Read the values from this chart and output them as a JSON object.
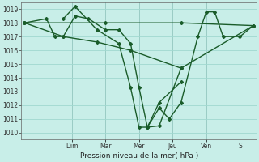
{
  "xlabel": "Pression niveau de la mer( hPa )",
  "background_color": "#c8eee8",
  "grid_color": "#a0d8d0",
  "line_color": "#1a5c2a",
  "ylim": [
    1009.5,
    1019.5
  ],
  "yticks": [
    1010,
    1011,
    1012,
    1013,
    1014,
    1015,
    1016,
    1017,
    1018,
    1019
  ],
  "day_labels": [
    "Dim",
    "Mar",
    "Mer",
    "Jeu",
    "Ven",
    "S"
  ],
  "day_x": [
    3,
    5,
    7,
    9,
    11,
    13
  ],
  "vline_x": [
    3,
    5,
    7,
    9,
    11,
    13
  ],
  "xlim": [
    0,
    14
  ],
  "series": [
    {
      "x": [
        0.2,
        1.5,
        2.0,
        2.5,
        3.2,
        4.0,
        5.0,
        5.8,
        6.5,
        7.0,
        7.5,
        8.2,
        9.5,
        13.8
      ],
      "y": [
        1018.0,
        1018.3,
        1017.0,
        1017.0,
        1018.5,
        1018.3,
        1017.5,
        1017.5,
        1016.5,
        1013.3,
        1010.4,
        1010.5,
        1014.7,
        1017.8
      ],
      "marker": "D",
      "ms": 2.0,
      "lw": 1.0
    },
    {
      "x": [
        0.2,
        5.0,
        9.5,
        13.8
      ],
      "y": [
        1018.0,
        1018.0,
        1018.0,
        1017.8
      ],
      "marker": "D",
      "ms": 2.0,
      "lw": 1.0
    },
    {
      "x": [
        0.2,
        2.5,
        4.5,
        6.5,
        9.5
      ],
      "y": [
        1018.0,
        1017.0,
        1016.6,
        1016.0,
        1014.7
      ],
      "marker": "D",
      "ms": 2.0,
      "lw": 1.0
    },
    {
      "x": [
        2.5,
        3.2,
        4.5,
        5.8,
        6.5,
        7.0,
        7.5,
        8.2,
        9.5
      ],
      "y": [
        1018.3,
        1019.2,
        1017.5,
        1016.5,
        1013.3,
        1010.4,
        1010.4,
        1012.2,
        1013.7
      ],
      "marker": "D",
      "ms": 2.0,
      "lw": 1.0
    },
    {
      "x": [
        7.5,
        8.2,
        8.8,
        9.5,
        10.5,
        11.0,
        11.5,
        12.0,
        13.0,
        13.8
      ],
      "y": [
        1010.4,
        1011.8,
        1011.0,
        1012.2,
        1017.0,
        1018.8,
        1018.8,
        1017.0,
        1017.0,
        1017.8
      ],
      "marker": "D",
      "ms": 2.0,
      "lw": 1.0
    }
  ]
}
